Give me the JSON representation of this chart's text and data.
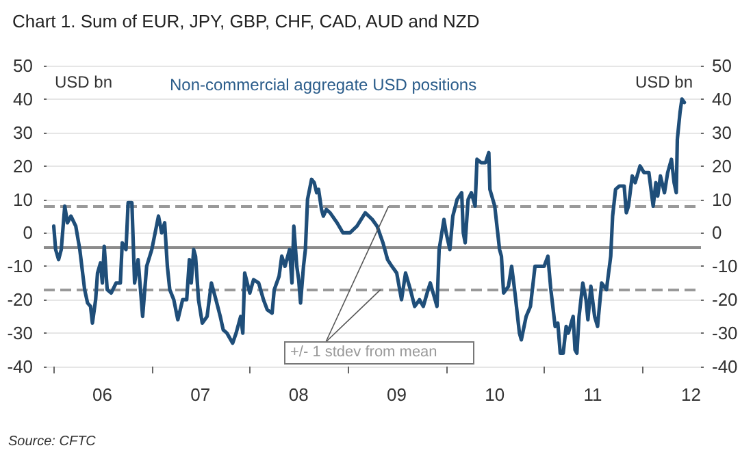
{
  "chart_data": {
    "type": "line",
    "title": "Chart 1. Sum of EUR, JPY, GBP, CHF, CAD, AUD and NZD",
    "subtitle": "Non-commercial aggregate USD positions",
    "ylabel": "USD bn",
    "y2label": "USD bn",
    "annotations": [
      {
        "text": "+/- 1 stdev from mean",
        "x": "2009-06-01",
        "y": 8
      },
      "Source: CFTC"
    ],
    "series": [
      {
        "color": "#1f4e79",
        "x": [
          "2006-01-01",
          "2006-01-08",
          "2006-01-19",
          "2006-01-29",
          "2006-02-11",
          "2006-02-21",
          "2006-03-06",
          "2006-03-24",
          "2006-04-08",
          "2006-04-26",
          "2006-05-07",
          "2006-05-18",
          "2006-05-25",
          "2006-06-06",
          "2006-06-13",
          "2006-06-24",
          "2006-07-01",
          "2006-07-08",
          "2006-07-19",
          "2006-08-03",
          "2006-08-21",
          "2006-09-06",
          "2006-09-13",
          "2006-09-27",
          "2006-10-05",
          "2006-10-19",
          "2006-10-29",
          "2006-11-11",
          "2006-11-28",
          "2006-12-13",
          "2007-01-01",
          "2007-01-26",
          "2007-02-07",
          "2007-02-18",
          "2007-02-28",
          "2007-03-09",
          "2007-03-24",
          "2007-04-08",
          "2007-04-26",
          "2007-05-11",
          "2007-05-21",
          "2007-05-28",
          "2007-06-06",
          "2007-06-13",
          "2007-06-24",
          "2007-07-08",
          "2007-07-26",
          "2007-08-11",
          "2007-08-28",
          "2007-09-13",
          "2007-09-24",
          "2007-10-08",
          "2007-10-29",
          "2007-11-11",
          "2007-11-28",
          "2007-12-06",
          "2007-12-13",
          "2008-01-01",
          "2008-01-15",
          "2008-02-03",
          "2008-02-21",
          "2008-03-06",
          "2008-03-24",
          "2008-04-01",
          "2008-04-19",
          "2008-04-29",
          "2008-05-11",
          "2008-05-28",
          "2008-06-06",
          "2008-06-13",
          "2008-06-24",
          "2008-07-01",
          "2008-07-08",
          "2008-07-19",
          "2008-07-26",
          "2008-08-03",
          "2008-08-18",
          "2008-08-28",
          "2008-09-06",
          "2008-09-13",
          "2008-09-24",
          "2008-10-01",
          "2008-10-12",
          "2008-10-26",
          "2008-11-21",
          "2008-12-13",
          "2009-01-08",
          "2009-02-03",
          "2009-03-06",
          "2009-04-01",
          "2009-04-19",
          "2009-05-11",
          "2009-05-28",
          "2009-06-13",
          "2009-07-01",
          "2009-07-19",
          "2009-08-03",
          "2009-08-21",
          "2009-09-06",
          "2009-09-24",
          "2009-10-08",
          "2009-10-26",
          "2009-11-03",
          "2009-11-21",
          "2009-11-28",
          "2009-12-06",
          "2009-12-24",
          "2010-01-01",
          "2010-01-15",
          "2010-01-26",
          "2010-02-11",
          "2010-02-28",
          "2010-03-06",
          "2010-03-13",
          "2010-03-24",
          "2010-04-05",
          "2010-04-19",
          "2010-04-26",
          "2010-05-11",
          "2010-05-28",
          "2010-06-09",
          "2010-06-13",
          "2010-07-01",
          "2010-07-19",
          "2010-07-26",
          "2010-08-03",
          "2010-08-21",
          "2010-09-02",
          "2010-09-13",
          "2010-10-01",
          "2010-10-08",
          "2010-10-26",
          "2010-11-11",
          "2010-11-28",
          "2010-12-13",
          "2011-01-01",
          "2011-01-15",
          "2011-01-26",
          "2011-02-11",
          "2011-02-21",
          "2011-03-02",
          "2011-03-13",
          "2011-03-24",
          "2011-04-01",
          "2011-04-19",
          "2011-04-26",
          "2011-05-03",
          "2011-05-11",
          "2011-05-25",
          "2011-06-06",
          "2011-06-13",
          "2011-06-24",
          "2011-07-08",
          "2011-07-19",
          "2011-08-03",
          "2011-08-21",
          "2011-09-06",
          "2011-09-13",
          "2011-09-24",
          "2011-10-08",
          "2011-10-26",
          "2011-11-03",
          "2011-11-11",
          "2011-11-25",
          "2011-12-06",
          "2011-12-24",
          "2012-01-08",
          "2012-01-26",
          "2012-02-11",
          "2012-02-21",
          "2012-02-28",
          "2012-03-09",
          "2012-03-24",
          "2012-04-05",
          "2012-04-12",
          "2012-04-19",
          "2012-04-29",
          "2012-05-07",
          "2012-05-11",
          "2012-05-21",
          "2012-05-28",
          "2012-06-06"
        ],
        "values": [
          2,
          -5,
          -8,
          -5,
          8,
          3,
          5,
          2,
          -5,
          -17,
          -21,
          -22,
          -27,
          -20,
          -12,
          -9,
          -15,
          -4,
          -17,
          -18,
          -15,
          -15,
          -3,
          -5,
          9,
          9,
          -15,
          -8,
          -25,
          -10,
          -5,
          5,
          0,
          3,
          -10,
          -17,
          -20,
          -26,
          -20,
          -20,
          -8,
          -15,
          -5,
          -7,
          -20,
          -27,
          -25,
          -15,
          -20,
          -25,
          -29,
          -30,
          -33,
          -30,
          -25,
          -30,
          -12,
          -18,
          -14,
          -15,
          -20,
          -23,
          -24,
          -17,
          -13,
          -7,
          -10,
          -5,
          -15,
          2,
          -10,
          -14,
          -21,
          -10,
          -5,
          10,
          16,
          15,
          12,
          13,
          7,
          5,
          7,
          6,
          3,
          0,
          0,
          2,
          6,
          4,
          2,
          -3,
          -8,
          -10,
          -12,
          -20,
          -12,
          -17,
          -22,
          -20,
          -22,
          -17,
          -15,
          -20,
          -22,
          -5,
          4,
          0,
          -5,
          5,
          10,
          12,
          0,
          -3,
          10,
          12,
          8,
          22,
          21,
          21,
          24,
          13,
          8,
          -5,
          -7,
          -18,
          -16,
          -10,
          -17,
          -30,
          -32,
          -25,
          -22,
          -10,
          -10,
          -10,
          -7,
          -17,
          -28,
          -27,
          -36,
          -36,
          -28,
          -30,
          -25,
          -35,
          -36,
          -25,
          -15,
          -20,
          -26,
          -16,
          -25,
          -28,
          -15,
          -17,
          -7,
          5,
          13,
          14,
          14,
          6,
          8,
          17,
          15,
          20,
          18,
          18,
          8,
          15,
          11,
          17,
          12,
          18,
          20,
          22,
          15,
          12,
          28,
          36,
          40,
          39
        ]
      }
    ],
    "xlim": [
      "2005-11-25",
      "2012-08-07"
    ],
    "xticks": [
      {
        "value": "2006",
        "label": null
      },
      {
        "value": "2006-07-01",
        "label": "06"
      },
      {
        "value": "2007",
        "label": null
      },
      {
        "value": "2007-07-01",
        "label": "07"
      },
      {
        "value": "2008",
        "label": null
      },
      {
        "value": "2008-07-01",
        "label": "08"
      },
      {
        "value": "2009",
        "label": null
      },
      {
        "value": "2009-07-01",
        "label": "09"
      },
      {
        "value": "2010",
        "label": null
      },
      {
        "value": "2010-07-01",
        "label": "10"
      },
      {
        "value": "2011",
        "label": null
      },
      {
        "value": "2011-07-01",
        "label": "11"
      },
      {
        "value": "2012",
        "label": null
      },
      {
        "value": "2012-07-01",
        "label": "12"
      }
    ],
    "ylim": [
      -40,
      50
    ],
    "yticks": [
      -40,
      -30,
      -20,
      -10,
      0,
      10,
      20,
      30,
      40,
      50
    ],
    "y2lim": [
      -40,
      50
    ],
    "y2ticks": [
      -40,
      -30,
      -20,
      -10,
      0,
      10,
      20,
      30,
      40,
      50
    ],
    "ref_lines": [
      {
        "axis": "y",
        "value": -4.5,
        "color": "#8c8c8c",
        "line_style": "solid"
      },
      {
        "axis": "y",
        "value": 8,
        "color": "#999999",
        "line_style": "dashed"
      },
      {
        "axis": "y",
        "value": -17,
        "color": "#999999",
        "line_style": "dashed"
      }
    ],
    "grid": "y",
    "marker": "none",
    "line_style": "solid"
  }
}
